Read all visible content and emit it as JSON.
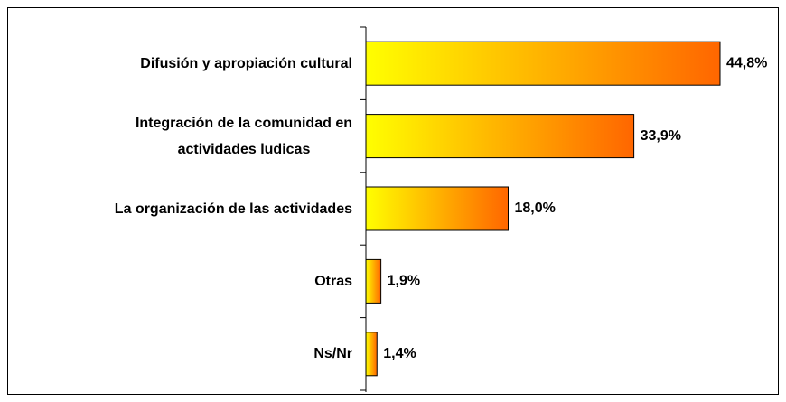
{
  "chart_data": {
    "type": "bar",
    "orientation": "horizontal",
    "categories": [
      "Difusión y apropiación cultural",
      "Integración de la comunidad en\nactividades ludicas",
      "La organización de las actividades",
      "Otras",
      "Ns/Nr"
    ],
    "values": [
      44.8,
      33.9,
      18.0,
      1.9,
      1.4
    ],
    "value_labels": [
      "44,8%",
      "33,9%",
      "18,0%",
      "1,9%",
      "1,4%"
    ],
    "color": [
      "#ffff00",
      "#ff6600"
    ]
  }
}
